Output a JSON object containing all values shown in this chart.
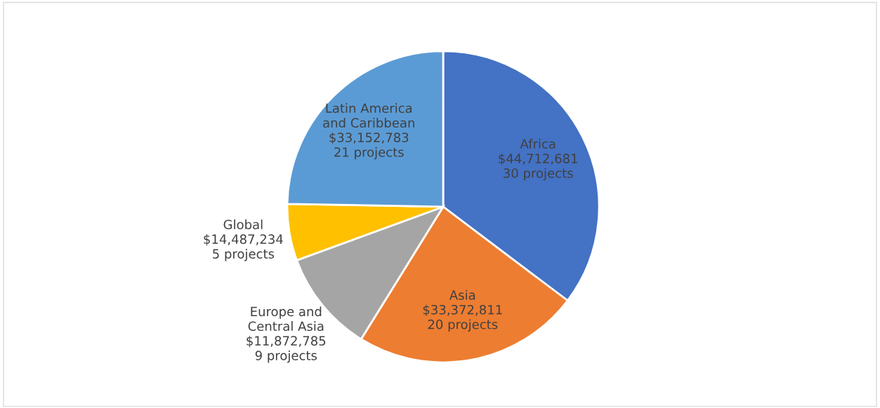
{
  "chart_data": {
    "type": "pie",
    "categories": [
      "Africa",
      "Asia",
      "Europe and\nCentral Asia",
      "Global",
      "Latin America\nand Caribbean"
    ],
    "values": [
      30,
      20,
      9,
      5,
      21
    ],
    "value_labels": [
      "$44,712,681\n30 projects",
      "$33,372,811\n20 projects",
      "$11,872,785\n9 projects",
      "$14,487,234\n5 projects",
      "$33,152,783\n21 projects"
    ],
    "colors": [
      "#4472c4",
      "#ed7d31",
      "#a5a5a5",
      "#ffc000",
      "#5b9bd5"
    ],
    "legend": false
  }
}
